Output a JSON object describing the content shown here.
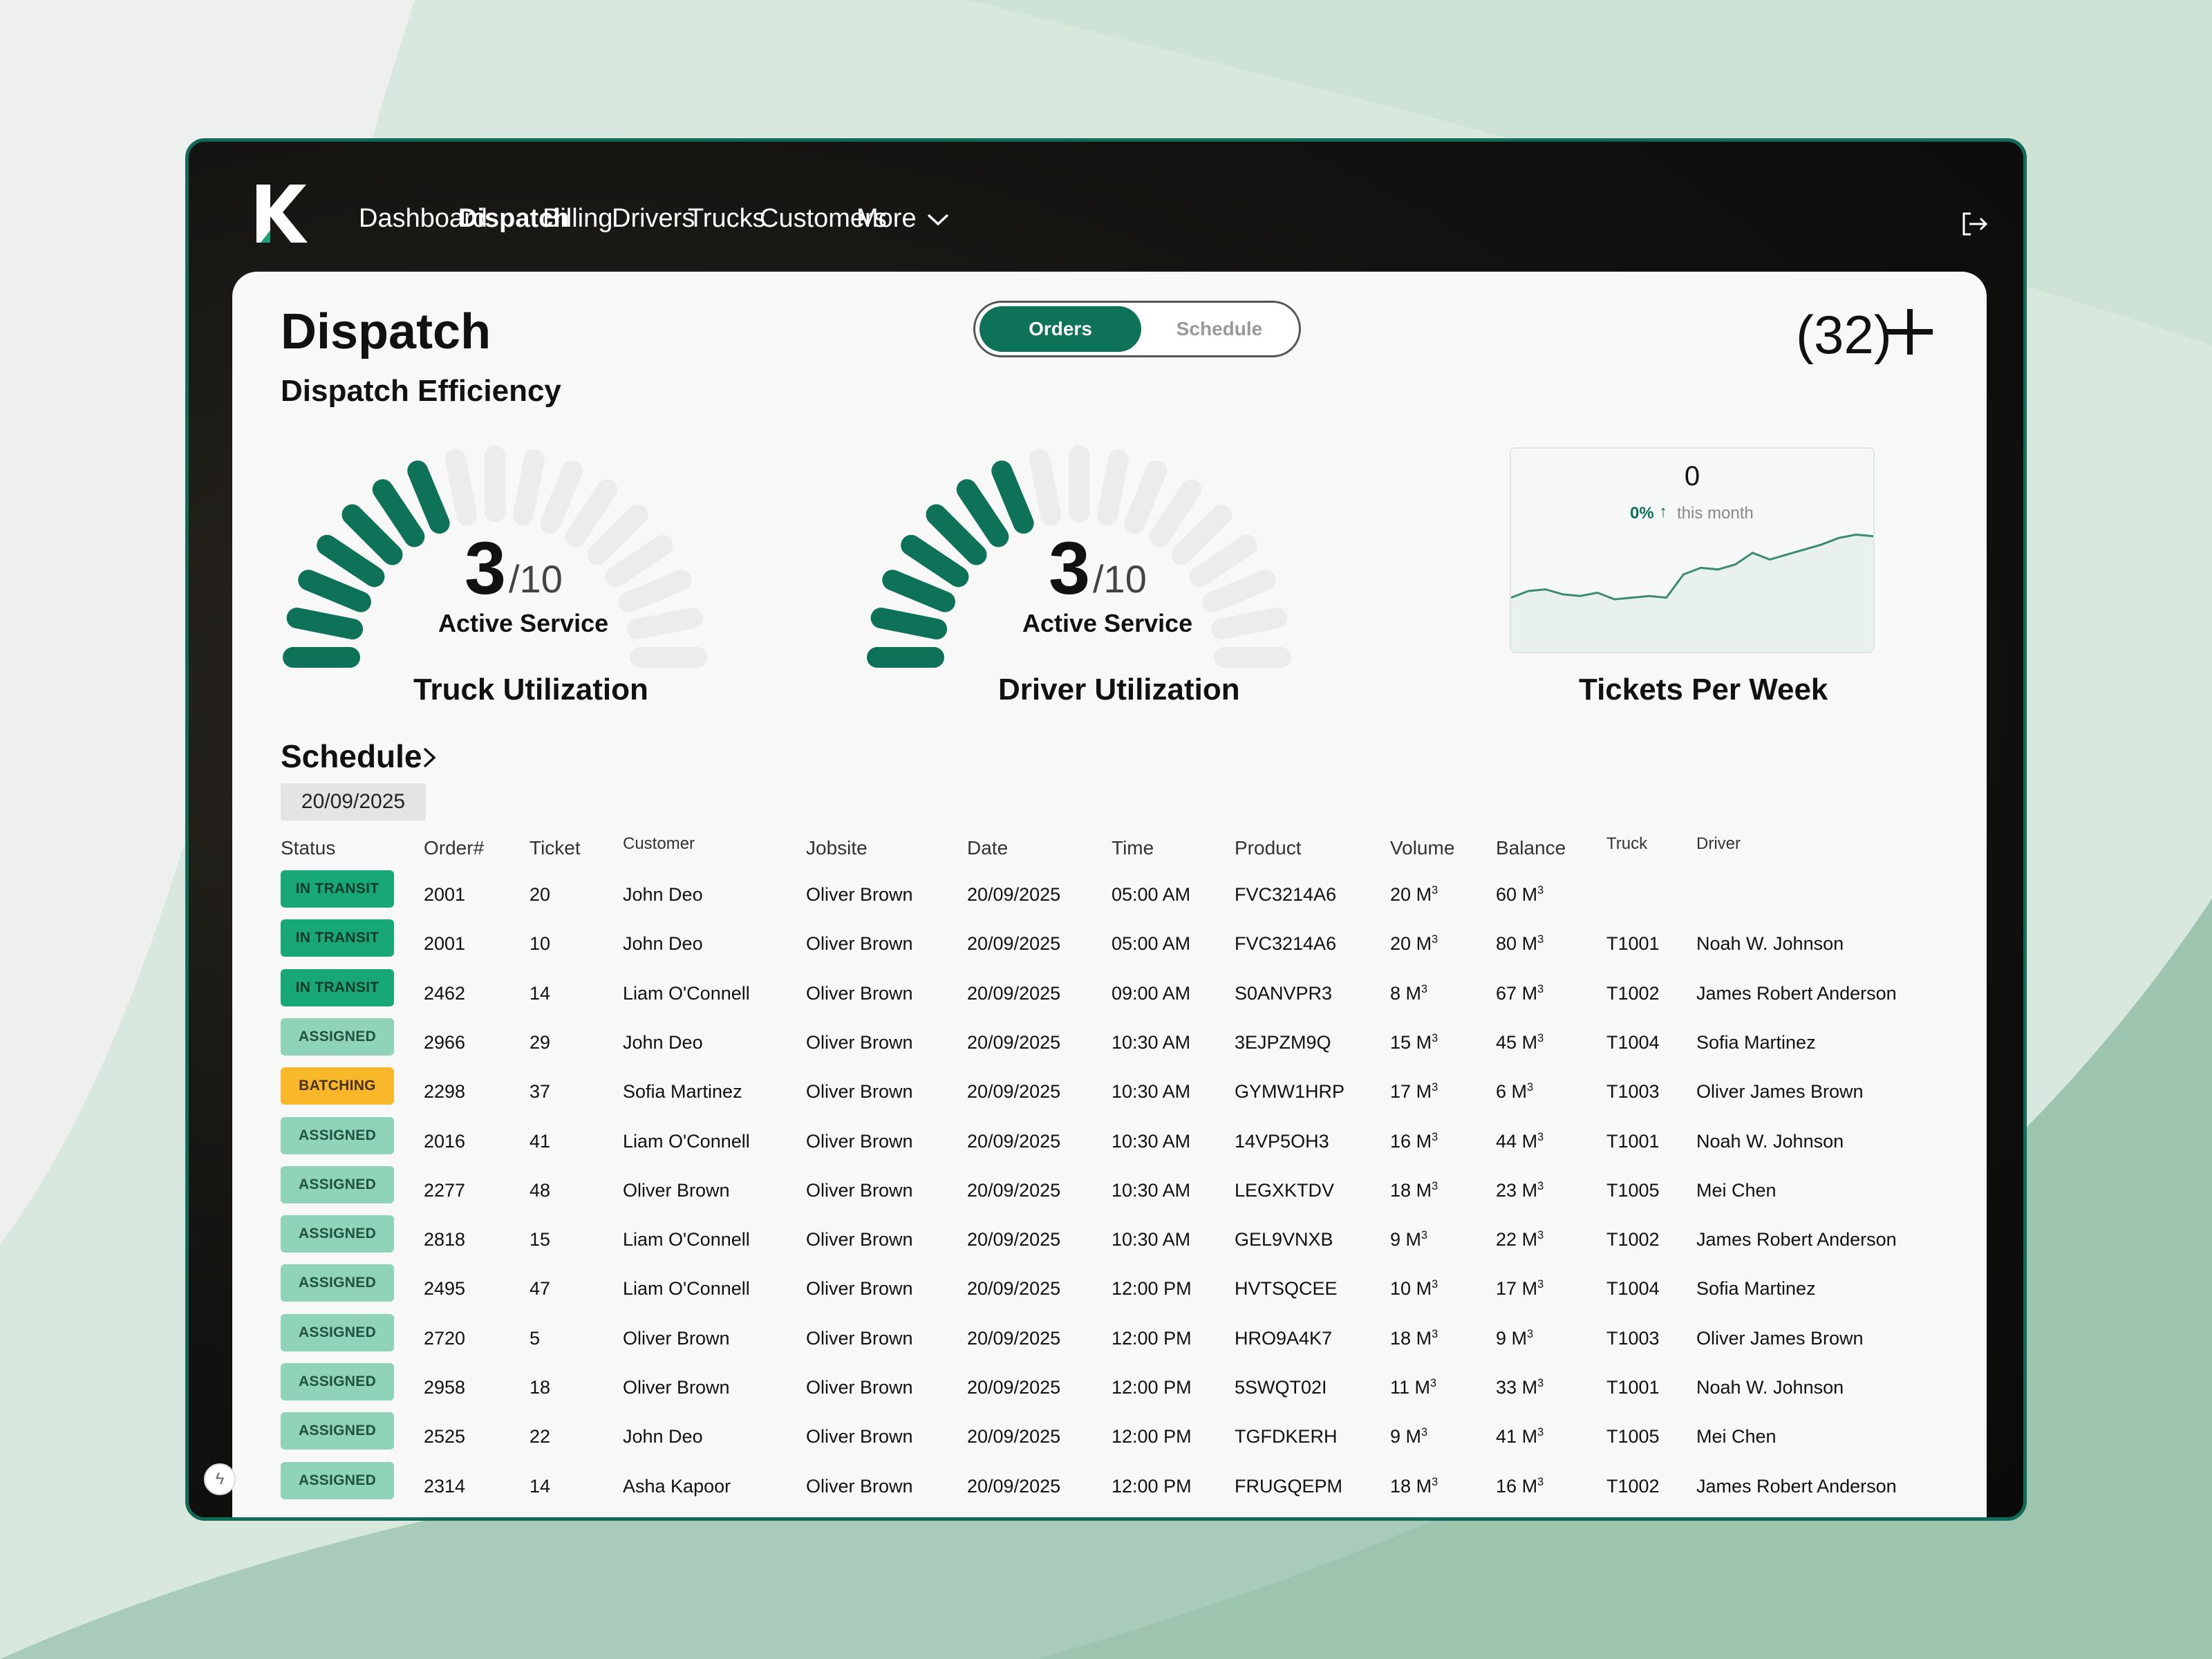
{
  "nav": {
    "items": [
      {
        "label": "Dashboard",
        "active": false
      },
      {
        "label": "Dispatch",
        "active": true
      },
      {
        "label": "Billing",
        "active": false
      },
      {
        "label": "Drivers",
        "active": false
      },
      {
        "label": "Trucks",
        "active": false
      },
      {
        "label": "Customers",
        "active": false
      },
      {
        "label": "More",
        "active": false
      }
    ],
    "logo_letter": "K",
    "logout_icon": "logout-icon"
  },
  "page": {
    "title": "Dispatch",
    "subtitle": "Dispatch Efficiency",
    "toggle": {
      "active": "Orders",
      "inactive": "Schedule"
    },
    "count": "(32)",
    "add_icon": "plus-icon"
  },
  "gauges": [
    {
      "value": "3",
      "total": "/10",
      "label": "Active Service",
      "title": "Truck Utilization",
      "fraction": 0.3
    },
    {
      "value": "3",
      "total": "/10",
      "label": "Active Service",
      "title": "Driver Utilization",
      "fraction": 0.3
    }
  ],
  "tickets": {
    "value": "0",
    "delta": "0%",
    "period": "this month",
    "title": "Tickets Per Week",
    "trend": [
      12,
      20,
      22,
      16,
      14,
      18,
      10,
      12,
      14,
      12,
      40,
      48,
      46,
      52,
      66,
      58,
      64,
      70,
      76,
      84,
      88,
      86
    ]
  },
  "schedule": {
    "heading": "Schedule",
    "date": "20/09/2025",
    "columns": [
      "Status",
      "Order#",
      "Ticket",
      "Customer",
      "Jobsite",
      "Date",
      "Time",
      "Product",
      "Volume",
      "Balance",
      "Truck",
      "Driver"
    ],
    "unit": "M",
    "rows": [
      {
        "status": "IN TRANSIT",
        "kind": "transit",
        "order": "2001",
        "ticket": "20",
        "customer": "John Deo",
        "jobsite": "Oliver Brown",
        "date": "20/09/2025",
        "time": "05:00 AM",
        "product": "FVC3214A6",
        "volume": "20",
        "balance": "60",
        "truck": "",
        "driver": ""
      },
      {
        "status": "IN TRANSIT",
        "kind": "transit",
        "order": "2001",
        "ticket": "10",
        "customer": "John Deo",
        "jobsite": "Oliver Brown",
        "date": "20/09/2025",
        "time": "05:00 AM",
        "product": "FVC3214A6",
        "volume": "20",
        "balance": "80",
        "truck": "T1001",
        "driver": "Noah W. Johnson"
      },
      {
        "status": "IN TRANSIT",
        "kind": "transit",
        "order": "2462",
        "ticket": "14",
        "customer": "Liam O'Connell",
        "jobsite": "Oliver Brown",
        "date": "20/09/2025",
        "time": "09:00 AM",
        "product": "S0ANVPR3",
        "volume": "8",
        "balance": "67",
        "truck": "T1002",
        "driver": "James Robert Anderson"
      },
      {
        "status": "ASSIGNED",
        "kind": "assigned",
        "order": "2966",
        "ticket": "29",
        "customer": "John Deo",
        "jobsite": "Oliver Brown",
        "date": "20/09/2025",
        "time": "10:30 AM",
        "product": "3EJPZM9Q",
        "volume": "15",
        "balance": "45",
        "truck": "T1004",
        "driver": "Sofia Martinez"
      },
      {
        "status": "BATCHING",
        "kind": "batching",
        "order": "2298",
        "ticket": "37",
        "customer": "Sofia Martinez",
        "jobsite": "Oliver Brown",
        "date": "20/09/2025",
        "time": "10:30 AM",
        "product": "GYMW1HRP",
        "volume": "17",
        "balance": "6",
        "truck": "T1003",
        "driver": "Oliver James Brown"
      },
      {
        "status": "ASSIGNED",
        "kind": "assigned",
        "order": "2016",
        "ticket": "41",
        "customer": "Liam O'Connell",
        "jobsite": "Oliver Brown",
        "date": "20/09/2025",
        "time": "10:30 AM",
        "product": "14VP5OH3",
        "volume": "16",
        "balance": "44",
        "truck": "T1001",
        "driver": "Noah W. Johnson"
      },
      {
        "status": "ASSIGNED",
        "kind": "assigned",
        "order": "2277",
        "ticket": "48",
        "customer": "Oliver Brown",
        "jobsite": "Oliver Brown",
        "date": "20/09/2025",
        "time": "10:30 AM",
        "product": "LEGXKTDV",
        "volume": "18",
        "balance": "23",
        "truck": "T1005",
        "driver": "Mei Chen"
      },
      {
        "status": "ASSIGNED",
        "kind": "assigned",
        "order": "2818",
        "ticket": "15",
        "customer": "Liam O'Connell",
        "jobsite": "Oliver Brown",
        "date": "20/09/2025",
        "time": "10:30 AM",
        "product": "GEL9VNXB",
        "volume": "9",
        "balance": "22",
        "truck": "T1002",
        "driver": "James Robert Anderson"
      },
      {
        "status": "ASSIGNED",
        "kind": "assigned",
        "order": "2495",
        "ticket": "47",
        "customer": "Liam O'Connell",
        "jobsite": "Oliver Brown",
        "date": "20/09/2025",
        "time": "12:00 PM",
        "product": "HVTSQCEE",
        "volume": "10",
        "balance": "17",
        "truck": "T1004",
        "driver": "Sofia Martinez"
      },
      {
        "status": "ASSIGNED",
        "kind": "assigned",
        "order": "2720",
        "ticket": "5",
        "customer": "Oliver Brown",
        "jobsite": "Oliver Brown",
        "date": "20/09/2025",
        "time": "12:00 PM",
        "product": "HRO9A4K7",
        "volume": "18",
        "balance": "9",
        "truck": "T1003",
        "driver": "Oliver James Brown"
      },
      {
        "status": "ASSIGNED",
        "kind": "assigned",
        "order": "2958",
        "ticket": "18",
        "customer": "Oliver Brown",
        "jobsite": "Oliver Brown",
        "date": "20/09/2025",
        "time": "12:00 PM",
        "product": "5SWQT02I",
        "volume": "11",
        "balance": "33",
        "truck": "T1001",
        "driver": "Noah W. Johnson"
      },
      {
        "status": "ASSIGNED",
        "kind": "assigned",
        "order": "2525",
        "ticket": "22",
        "customer": "John Deo",
        "jobsite": "Oliver Brown",
        "date": "20/09/2025",
        "time": "12:00 PM",
        "product": "TGFDKERH",
        "volume": "9",
        "balance": "41",
        "truck": "T1005",
        "driver": "Mei Chen"
      },
      {
        "status": "ASSIGNED",
        "kind": "assigned",
        "order": "2314",
        "ticket": "14",
        "customer": "Asha Kapoor",
        "jobsite": "Oliver Brown",
        "date": "20/09/2025",
        "time": "12:00 PM",
        "product": "FRUGQEPM",
        "volume": "18",
        "balance": "16",
        "truck": "T1002",
        "driver": "James Robert Anderson"
      }
    ]
  },
  "colors": {
    "accent": "#0e7259",
    "transit": "#18a877",
    "assigned": "#8fd3b8",
    "batching": "#f8b82a",
    "frame": "#106a55"
  },
  "misc": {
    "corner_icon": "lightning-icon"
  }
}
